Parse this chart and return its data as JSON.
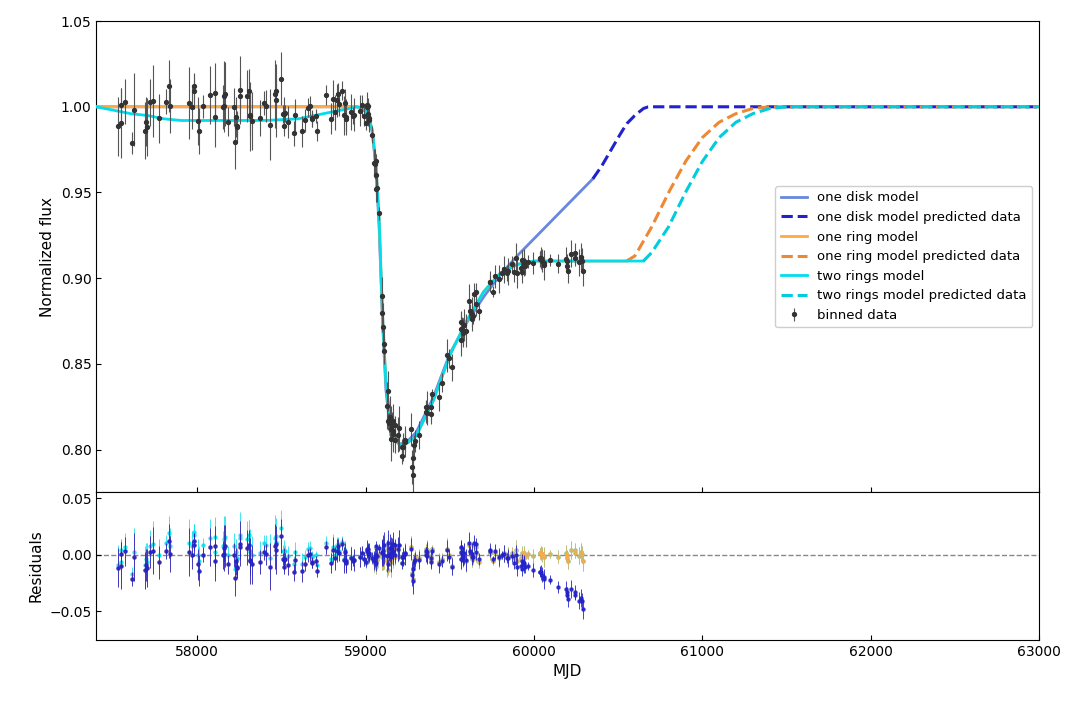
{
  "xlim": [
    57400,
    63000
  ],
  "ylim_main": [
    0.775,
    1.05
  ],
  "ylim_resid": [
    -0.075,
    0.055
  ],
  "xlabel": "MJD",
  "ylabel_main": "Normalized flux",
  "ylabel_resid": "Residuals",
  "colors": {
    "one_disk": "#6688dd",
    "one_disk_pred": "#2222cc",
    "one_ring": "#ffaa44",
    "one_ring_pred": "#ee8833",
    "two_rings": "#00ddee",
    "two_rings_pred": "#00ccdd",
    "data": "#333333",
    "data_err": "#555555",
    "resid_zero": "#888888"
  },
  "legend_labels": [
    "one disk model",
    "one disk model predicted data",
    "one ring model",
    "one ring model predicted data",
    "two rings model",
    "two rings model predicted data",
    "binned data"
  ],
  "one_disk_model": {
    "x": [
      57400,
      58950,
      58980,
      59010,
      59040,
      59060,
      59080,
      59100,
      59120,
      59150,
      59200,
      59250,
      59300,
      59400,
      59500,
      59600,
      59700,
      59800,
      59900,
      60000,
      60100,
      60200,
      60300,
      60350
    ],
    "y": [
      1.0,
      1.0,
      0.999,
      0.996,
      0.985,
      0.965,
      0.93,
      0.875,
      0.835,
      0.808,
      0.803,
      0.805,
      0.81,
      0.83,
      0.856,
      0.874,
      0.889,
      0.902,
      0.913,
      0.923,
      0.933,
      0.943,
      0.953,
      0.958
    ]
  },
  "one_disk_pred": {
    "x": [
      60350,
      60400,
      60500,
      60550,
      60600,
      60650,
      60680,
      60700,
      60750,
      63000
    ],
    "y": [
      0.958,
      0.965,
      0.982,
      0.99,
      0.995,
      0.999,
      1.0,
      1.0,
      1.0,
      1.0
    ]
  },
  "one_ring_model": {
    "x": [
      57400,
      58950,
      58980,
      59010,
      59040,
      59060,
      59080,
      59100,
      59120,
      59150,
      59200,
      59250,
      59300,
      59400,
      59500,
      59600,
      59700,
      59800,
      59900,
      60000,
      60100,
      60200,
      60300,
      60400,
      60500,
      60550
    ],
    "y": [
      1.0,
      1.0,
      0.999,
      0.997,
      0.986,
      0.967,
      0.935,
      0.878,
      0.84,
      0.812,
      0.803,
      0.804,
      0.808,
      0.828,
      0.855,
      0.875,
      0.892,
      0.903,
      0.908,
      0.91,
      0.91,
      0.91,
      0.91,
      0.91,
      0.91,
      0.91
    ]
  },
  "one_ring_pred": {
    "x": [
      60550,
      60600,
      60700,
      60800,
      60900,
      61000,
      61100,
      61200,
      61300,
      61400,
      61500,
      62000,
      63000
    ],
    "y": [
      0.91,
      0.913,
      0.93,
      0.95,
      0.968,
      0.982,
      0.991,
      0.996,
      0.999,
      1.0,
      1.0,
      1.0,
      1.0
    ]
  },
  "two_rings_model": {
    "x": [
      57400,
      57500,
      57600,
      57700,
      57800,
      57900,
      58000,
      58100,
      58200,
      58400,
      58600,
      58700,
      58800,
      58850,
      58900,
      58950,
      58980,
      59010,
      59040,
      59060,
      59080,
      59100,
      59120,
      59150,
      59200,
      59250,
      59300,
      59400,
      59500,
      59600,
      59700,
      59800,
      59900,
      60000,
      60100,
      60200,
      60300,
      60400,
      60500,
      60600,
      60650
    ],
    "y": [
      1.0,
      0.998,
      0.996,
      0.995,
      0.993,
      0.992,
      0.992,
      0.992,
      0.992,
      0.992,
      0.993,
      0.995,
      0.997,
      0.998,
      0.999,
      1.0,
      0.999,
      0.997,
      0.986,
      0.967,
      0.935,
      0.878,
      0.84,
      0.812,
      0.803,
      0.804,
      0.808,
      0.828,
      0.855,
      0.875,
      0.892,
      0.903,
      0.908,
      0.91,
      0.91,
      0.91,
      0.91,
      0.91,
      0.91,
      0.91,
      0.91
    ]
  },
  "two_rings_pred": {
    "x": [
      60650,
      60700,
      60800,
      60900,
      61000,
      61100,
      61200,
      61300,
      61400,
      61500,
      61700,
      62000,
      63000
    ],
    "y": [
      0.91,
      0.915,
      0.93,
      0.95,
      0.968,
      0.982,
      0.991,
      0.996,
      0.999,
      1.0,
      1.0,
      1.0,
      1.0
    ]
  },
  "data_seed": 12345,
  "yticks_main": [
    0.8,
    0.85,
    0.9,
    0.95,
    1.0,
    1.05
  ],
  "yticks_resid": [
    -0.05,
    0.0,
    0.05
  ]
}
